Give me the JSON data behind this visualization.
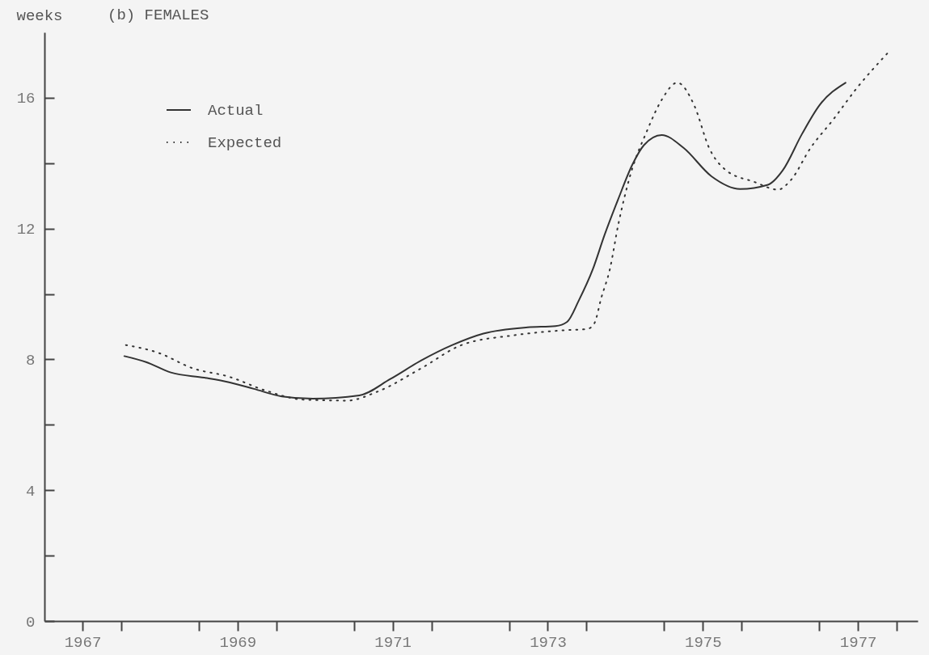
{
  "chart_data": {
    "type": "line",
    "title": "(b) FEMALES",
    "ylabel": "weeks",
    "xlim": [
      1966.51,
      1977.77
    ],
    "ylim": [
      0,
      18
    ],
    "xticks": [
      1967,
      {
        "value": 1967.5,
        "label": null
      },
      {
        "value": 1968.5,
        "label": null
      },
      1969,
      {
        "value": 1969.5,
        "label": null
      },
      {
        "value": 1970.5,
        "label": null
      },
      1971,
      {
        "value": 1971.5,
        "label": null
      },
      {
        "value": 1972.5,
        "label": null
      },
      1973,
      {
        "value": 1973.5,
        "label": null
      },
      {
        "value": 1974.5,
        "label": null
      },
      1975,
      {
        "value": 1975.5,
        "label": null
      },
      {
        "value": 1976.5,
        "label": null
      },
      1977,
      {
        "value": 1977.5,
        "label": null
      }
    ],
    "yticks": [
      0,
      {
        "value": 2,
        "label": null
      },
      4,
      {
        "value": 6,
        "label": null
      },
      8,
      {
        "value": 10,
        "label": null
      },
      12,
      {
        "value": 14,
        "label": null
      },
      16
    ],
    "legend": "top left",
    "grid": false,
    "series": [
      {
        "name": "Actual",
        "color": "#333333",
        "line_style": "solid",
        "x": [
          1967.54,
          1967.82,
          1968.14,
          1968.57,
          1968.89,
          1969.21,
          1969.57,
          1969.97,
          1970.57,
          1970.97,
          1971.37,
          1971.77,
          1972.17,
          1972.74,
          1973.1,
          1973.25,
          1973.4,
          1973.58,
          1973.73,
          1973.91,
          1974.09,
          1974.24,
          1974.47,
          1974.75,
          1975.11,
          1975.48,
          1975.84,
          1976.03,
          1976.28,
          1976.5,
          1976.84
        ],
        "values": [
          8.1,
          7.92,
          7.6,
          7.44,
          7.3,
          7.1,
          6.87,
          6.8,
          6.9,
          7.4,
          7.97,
          8.44,
          8.79,
          8.98,
          9.02,
          9.15,
          9.8,
          10.75,
          11.79,
          12.91,
          13.95,
          14.55,
          14.86,
          14.47,
          13.6,
          13.21,
          13.34,
          13.78,
          14.9,
          15.76,
          16.46
        ]
      },
      {
        "name": "Expected",
        "color": "#333333",
        "line_style": "dotted",
        "x": [
          1967.56,
          1967.98,
          1968.42,
          1968.89,
          1969.37,
          1969.85,
          1970.41,
          1970.81,
          1971.37,
          1971.89,
          1972.57,
          1973.2,
          1973.51,
          1973.6,
          1973.69,
          1973.8,
          1973.91,
          1974.06,
          1974.28,
          1974.47,
          1974.67,
          1974.89,
          1975.08,
          1975.3,
          1975.66,
          1975.97,
          1976.13,
          1976.39,
          1976.68,
          1976.98,
          1977.38
        ],
        "values": [
          8.44,
          8.2,
          7.73,
          7.47,
          7.04,
          6.77,
          6.74,
          7.02,
          7.73,
          8.44,
          8.74,
          8.89,
          8.93,
          9.1,
          9.88,
          10.75,
          12.13,
          13.6,
          14.99,
          15.94,
          16.46,
          15.76,
          14.47,
          13.78,
          13.43,
          13.19,
          13.47,
          14.47,
          15.33,
          16.28,
          17.36
        ]
      }
    ]
  }
}
